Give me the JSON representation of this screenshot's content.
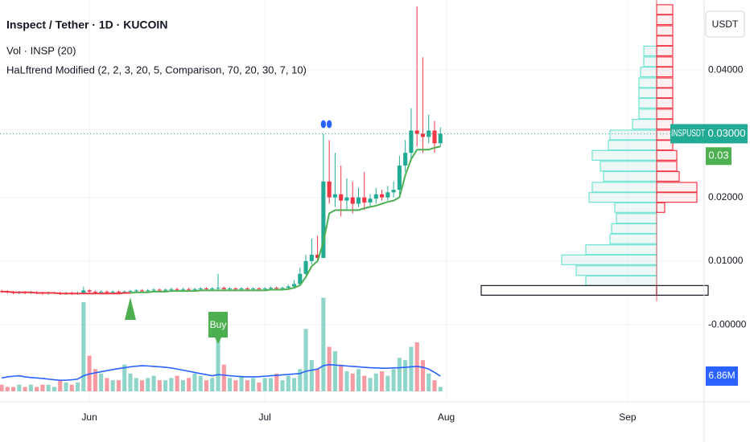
{
  "chart_data": {
    "type": "candlestick",
    "title": "Inspect / Tether · 1D · KUCOIN",
    "volume_title": "Vol · INSP (20)",
    "indicator_title": "HaLftrend Modified (2, 2, 3, 20, 5, Comparison, 70, 20, 30, 7, 10)",
    "currency": "USDT",
    "symbol": "INSPUSDT",
    "up_color": "#22ab94",
    "down_color": "#f23645",
    "xlim": [
      -0.28,
      120.08
    ],
    "xticks": [
      {
        "value": 15,
        "label": "Jun"
      },
      {
        "value": 45,
        "label": "Jul"
      },
      {
        "value": 76,
        "label": "Aug"
      },
      {
        "value": 107,
        "label": "Sep"
      }
    ],
    "ylim": [
      -0.0121,
      0.051
    ],
    "yticks": [
      {
        "value": 0.04,
        "label": "0.04000"
      },
      {
        "value": 0.02,
        "label": "0.02000"
      },
      {
        "value": 0.01,
        "label": "0.01000"
      },
      {
        "value": 0,
        "label": "-0.00000"
      }
    ],
    "grid": true,
    "open": [
      0.0053,
      0.0052,
      0.0051,
      0.005,
      0.0051,
      0.005,
      0.0051,
      0.005,
      0.0049,
      0.005,
      0.005,
      0.0049,
      0.005,
      0.0049,
      0.005,
      0.0054,
      0.0052,
      0.0051,
      0.0052,
      0.0051,
      0.0052,
      0.0051,
      0.0052,
      0.0053,
      0.0054,
      0.0053,
      0.0054,
      0.0055,
      0.0054,
      0.0055,
      0.0056,
      0.0055,
      0.0056,
      0.0055,
      0.0056,
      0.0057,
      0.0056,
      0.0057,
      0.0058,
      0.0056,
      0.0057,
      0.0056,
      0.0057,
      0.0056,
      0.0057,
      0.0056,
      0.0057,
      0.0058,
      0.0057,
      0.0058,
      0.006,
      0.0064,
      0.008,
      0.01,
      0.011,
      0.0105,
      0.0225,
      0.02,
      0.0205,
      0.0195,
      0.02,
      0.019,
      0.02,
      0.0192,
      0.0198,
      0.0205,
      0.02,
      0.0208,
      0.0212,
      0.025,
      0.027,
      0.0305,
      0.03,
      0.0295,
      0.0305,
      0.0285
    ],
    "high": [
      0.0055,
      0.0054,
      0.0053,
      0.0053,
      0.0053,
      0.0053,
      0.0053,
      0.0052,
      0.0052,
      0.0052,
      0.0052,
      0.0052,
      0.0052,
      0.0052,
      0.006,
      0.0056,
      0.0054,
      0.0054,
      0.0054,
      0.0054,
      0.0054,
      0.0054,
      0.0055,
      0.0056,
      0.0056,
      0.0056,
      0.0057,
      0.0057,
      0.0057,
      0.0058,
      0.0058,
      0.0058,
      0.0058,
      0.0058,
      0.0059,
      0.0059,
      0.0059,
      0.008,
      0.006,
      0.0059,
      0.0059,
      0.0059,
      0.0059,
      0.0059,
      0.0059,
      0.0059,
      0.006,
      0.006,
      0.006,
      0.0063,
      0.007,
      0.009,
      0.011,
      0.0135,
      0.014,
      0.03,
      0.029,
      0.027,
      0.025,
      0.023,
      0.0225,
      0.0215,
      0.024,
      0.0205,
      0.0215,
      0.0212,
      0.0218,
      0.0225,
      0.0265,
      0.029,
      0.034,
      0.05,
      0.042,
      0.033,
      0.032,
      0.031
    ],
    "low": [
      0.005,
      0.0049,
      0.0048,
      0.0048,
      0.0048,
      0.0048,
      0.0048,
      0.0047,
      0.0047,
      0.0048,
      0.0047,
      0.0047,
      0.0047,
      0.0047,
      0.0048,
      0.005,
      0.0049,
      0.0049,
      0.0049,
      0.0049,
      0.0049,
      0.0049,
      0.005,
      0.0051,
      0.0051,
      0.0051,
      0.0052,
      0.0052,
      0.0052,
      0.0053,
      0.0053,
      0.0053,
      0.0053,
      0.0053,
      0.0054,
      0.0054,
      0.0054,
      0.0055,
      0.0054,
      0.0054,
      0.0054,
      0.0054,
      0.0054,
      0.0054,
      0.0054,
      0.0054,
      0.0055,
      0.0055,
      0.0055,
      0.0056,
      0.0058,
      0.0062,
      0.0078,
      0.0095,
      0.01,
      0.0105,
      0.019,
      0.0185,
      0.017,
      0.018,
      0.0175,
      0.0185,
      0.018,
      0.0185,
      0.019,
      0.0195,
      0.0195,
      0.02,
      0.0205,
      0.024,
      0.026,
      0.028,
      0.027,
      0.0285,
      0.027,
      0.028
    ],
    "close": [
      0.0052,
      0.0051,
      0.005,
      0.0051,
      0.005,
      0.0051,
      0.005,
      0.0049,
      0.005,
      0.005,
      0.0049,
      0.005,
      0.0049,
      0.005,
      0.0054,
      0.0052,
      0.0051,
      0.0052,
      0.0051,
      0.0052,
      0.0051,
      0.0052,
      0.0053,
      0.0054,
      0.0053,
      0.0054,
      0.0055,
      0.0054,
      0.0055,
      0.0056,
      0.0055,
      0.0056,
      0.0055,
      0.0056,
      0.0057,
      0.0056,
      0.0057,
      0.0058,
      0.0056,
      0.0057,
      0.0056,
      0.0057,
      0.0056,
      0.0057,
      0.0056,
      0.0057,
      0.0058,
      0.0057,
      0.0058,
      0.006,
      0.0064,
      0.008,
      0.01,
      0.011,
      0.0105,
      0.0225,
      0.02,
      0.0205,
      0.0195,
      0.02,
      0.019,
      0.02,
      0.0192,
      0.0198,
      0.0205,
      0.02,
      0.0208,
      0.0212,
      0.025,
      0.027,
      0.0305,
      0.03,
      0.0295,
      0.0305,
      0.0285,
      0.03
    ],
    "last_price": {
      "value": 0.03,
      "label": "0.03000"
    },
    "halftrend": [
      {
        "color": "#f23645",
        "values": [
          0.0052,
          0.0052,
          0.0051,
          0.0051,
          0.0051,
          0.0051,
          0.005,
          0.005,
          0.005,
          0.005,
          0.0049,
          0.0049,
          0.0049,
          0.0049,
          0.0049,
          0.0049,
          0.0049,
          0.0049,
          0.0049,
          0.0049,
          0.0049,
          0.005,
          0.005,
          null,
          null,
          null,
          null,
          null,
          null,
          null,
          null,
          null,
          null,
          null,
          null,
          null,
          null,
          null,
          null,
          null,
          null,
          null,
          null,
          null,
          null,
          null,
          null,
          null,
          null,
          null,
          null,
          null,
          null,
          null,
          null,
          null,
          null,
          null,
          null,
          null,
          null,
          null,
          null,
          null,
          null,
          null,
          null,
          null,
          null,
          null,
          null,
          null,
          null,
          null,
          null,
          null
        ]
      },
      {
        "color": "#4caf50",
        "values": [
          null,
          null,
          null,
          null,
          null,
          null,
          null,
          null,
          null,
          null,
          null,
          null,
          null,
          null,
          null,
          null,
          null,
          null,
          null,
          null,
          null,
          null,
          0.005,
          0.0051,
          0.0051,
          0.0051,
          0.0052,
          0.0052,
          0.0052,
          0.0053,
          0.0053,
          0.0053,
          0.0053,
          0.0053,
          0.0054,
          0.0054,
          0.0054,
          0.0054,
          0.0054,
          0.0054,
          0.0054,
          0.0054,
          0.0054,
          0.0054,
          0.0054,
          0.0054,
          0.0055,
          0.0055,
          0.0055,
          0.0056,
          0.0058,
          0.0062,
          0.0075,
          0.0092,
          0.01,
          0.013,
          0.0175,
          0.018,
          0.018,
          0.018,
          0.018,
          0.018,
          0.0183,
          0.0185,
          0.0187,
          0.019,
          0.0193,
          0.0195,
          0.02,
          0.0235,
          0.026,
          0.0275,
          0.0275,
          0.0275,
          0.0278,
          0.028
        ]
      }
    ],
    "halftrend_label": {
      "value": 0.028,
      "label": "0.03"
    },
    "buy_arrows": [
      22
    ],
    "buy_labels": {
      "x": [
        37
      ],
      "text": "Buy"
    },
    "dots": {
      "x": [
        55,
        56
      ],
      "values": [
        0.0315,
        0.0315
      ],
      "color": "#2962ff"
    },
    "volume_ylim": [
      0,
      40
    ],
    "volume": [
      3,
      2,
      2,
      3,
      2,
      3,
      2,
      3,
      3,
      2,
      5,
      4,
      3,
      4,
      40,
      16,
      10,
      8,
      6,
      5,
      5,
      12,
      8,
      6,
      5,
      6,
      7,
      5,
      5,
      6,
      7,
      5,
      6,
      8,
      7,
      5,
      6,
      25,
      12,
      6,
      5,
      7,
      5,
      6,
      4,
      6,
      6,
      8,
      5,
      7,
      6,
      10,
      28,
      14,
      10,
      42,
      20,
      18,
      12,
      9,
      8,
      10,
      7,
      6,
      8,
      9,
      7,
      10,
      15,
      14,
      20,
      22,
      14,
      8,
      5,
      2
    ],
    "volume_ma": {
      "color": "#2962ff",
      "values": [
        6,
        6.5,
        6.8,
        7,
        6.5,
        6.2,
        6,
        5.8,
        5.5,
        5.2,
        5,
        5,
        5.2,
        5.5,
        7,
        7.8,
        8.3,
        8.8,
        9.3,
        9.8,
        10.2,
        10.6,
        11,
        11.3,
        11.5,
        11.4,
        11.2,
        11,
        10.8,
        10.5,
        10,
        9.5,
        9,
        8.5,
        8,
        7.5,
        7,
        7.5,
        7.3,
        7,
        6.8,
        6.6,
        6.5,
        6.5,
        6.6,
        6.8,
        7,
        7.2,
        7.4,
        7.6,
        7.8,
        8,
        9,
        9.5,
        10,
        11.5,
        12,
        11.8,
        11.6,
        11.4,
        11.2,
        11,
        10.8,
        10.6,
        10.5,
        10.4,
        10.4,
        10.5,
        10.6,
        10.8,
        11,
        11.2,
        10.8,
        10,
        8.5,
        6.86
      ],
      "last_label": "6.86M"
    },
    "profile": {
      "levels": [
        0.0495,
        0.0479,
        0.0462,
        0.0446,
        0.043,
        0.0413,
        0.0397,
        0.038,
        0.0364,
        0.0348,
        0.0331,
        0.0315,
        0.0298,
        0.0282,
        0.0266,
        0.0249,
        0.0233,
        0.0216,
        0.02,
        0.0184,
        0.0167,
        0.0151,
        0.0135,
        0.0118,
        0.0102,
        0.0085,
        0.0069,
        0.0054
      ],
      "buy": [
        0,
        0,
        0,
        0,
        16,
        16,
        20,
        22,
        22,
        22,
        22,
        30,
        58,
        60,
        80,
        70,
        66,
        80,
        84,
        52,
        50,
        56,
        58,
        88,
        118,
        100,
        88,
        218
      ],
      "sell": [
        20,
        20,
        20,
        20,
        20,
        20,
        20,
        20,
        20,
        20,
        20,
        20,
        20,
        20,
        25,
        25,
        28,
        50,
        50,
        10,
        0,
        0,
        0,
        0,
        0,
        0,
        0,
        64
      ],
      "poc": 27
    }
  }
}
